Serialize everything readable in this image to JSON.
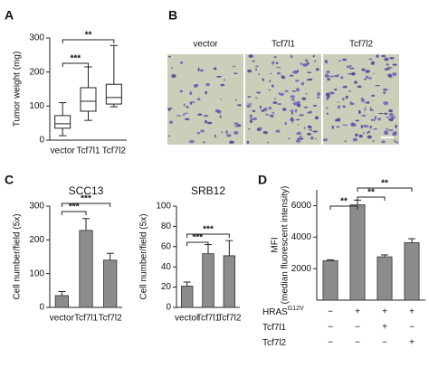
{
  "panel_b": {
    "panel": "B",
    "labels": [
      "vector",
      "Tcf7l1",
      "Tcf7l2"
    ]
  },
  "chart_data": [
    {
      "type": "box",
      "panel": "A",
      "ylabel": "Tumor weight (mg)",
      "categories": [
        "vector",
        "Tcf7l1",
        "Tcf7l2"
      ],
      "boxes": [
        {
          "min": 13,
          "q1": 35,
          "median": 48,
          "q3": 72,
          "max": 110
        },
        {
          "min": 58,
          "q1": 85,
          "median": 114,
          "q3": 154,
          "max": 215
        },
        {
          "min": 98,
          "q1": 106,
          "median": 125,
          "q3": 164,
          "max": 278
        }
      ],
      "ylim": [
        0,
        300
      ],
      "yticks": [
        0,
        100,
        200,
        300
      ],
      "annotations": [
        {
          "label": "***"
        },
        {
          "label": "**"
        }
      ]
    },
    {
      "type": "bar",
      "panel": "C",
      "title": "SCC13",
      "ylabel": "Cell number/field (5x)",
      "categories": [
        "vector",
        "Tcf7l1",
        "Tcf7l2"
      ],
      "values": [
        35,
        228,
        140
      ],
      "errors": [
        12,
        35,
        20
      ],
      "color": "#8c8c8c",
      "ylim": [
        0,
        300
      ],
      "yticks": [
        0,
        100,
        200,
        300
      ],
      "annotations": [
        {
          "label": "***"
        },
        {
          "label": "***"
        }
      ]
    },
    {
      "type": "bar",
      "title": "SRB12",
      "ylabel": "Cell number/field (5x)",
      "categories": [
        "vector",
        "Tcf7l1",
        "Tcf7l2"
      ],
      "values": [
        21,
        53,
        51
      ],
      "errors": [
        4,
        9,
        15
      ],
      "color": "#8c8c8c",
      "ylim": [
        0,
        100
      ],
      "yticks": [
        0,
        20,
        40,
        60,
        80,
        100
      ],
      "annotations": [
        {
          "label": "***"
        },
        {
          "label": "***"
        }
      ]
    },
    {
      "type": "bar",
      "panel": "D",
      "ylabel": [
        "MFI",
        "(median fluorescent intensity)"
      ],
      "values": [
        2500,
        6050,
        2750,
        3650
      ],
      "errors": [
        60,
        300,
        120,
        250
      ],
      "color": "#8c8c8c",
      "ylim": [
        0,
        7000
      ],
      "yticks": [
        2000,
        4000,
        6000
      ],
      "annotations": [
        {
          "label": "**"
        },
        {
          "label": "**"
        },
        {
          "label": "**"
        }
      ],
      "conditions": [
        {
          "name": "HRAS",
          "superscript": "G12V",
          "values": [
            "−",
            "+",
            "+",
            "+"
          ]
        },
        {
          "name": "Tcf7l1",
          "values": [
            "−",
            "−",
            "+",
            "−"
          ]
        },
        {
          "name": "Tcf7l2",
          "values": [
            "−",
            "−",
            "−",
            "+"
          ]
        }
      ]
    }
  ]
}
